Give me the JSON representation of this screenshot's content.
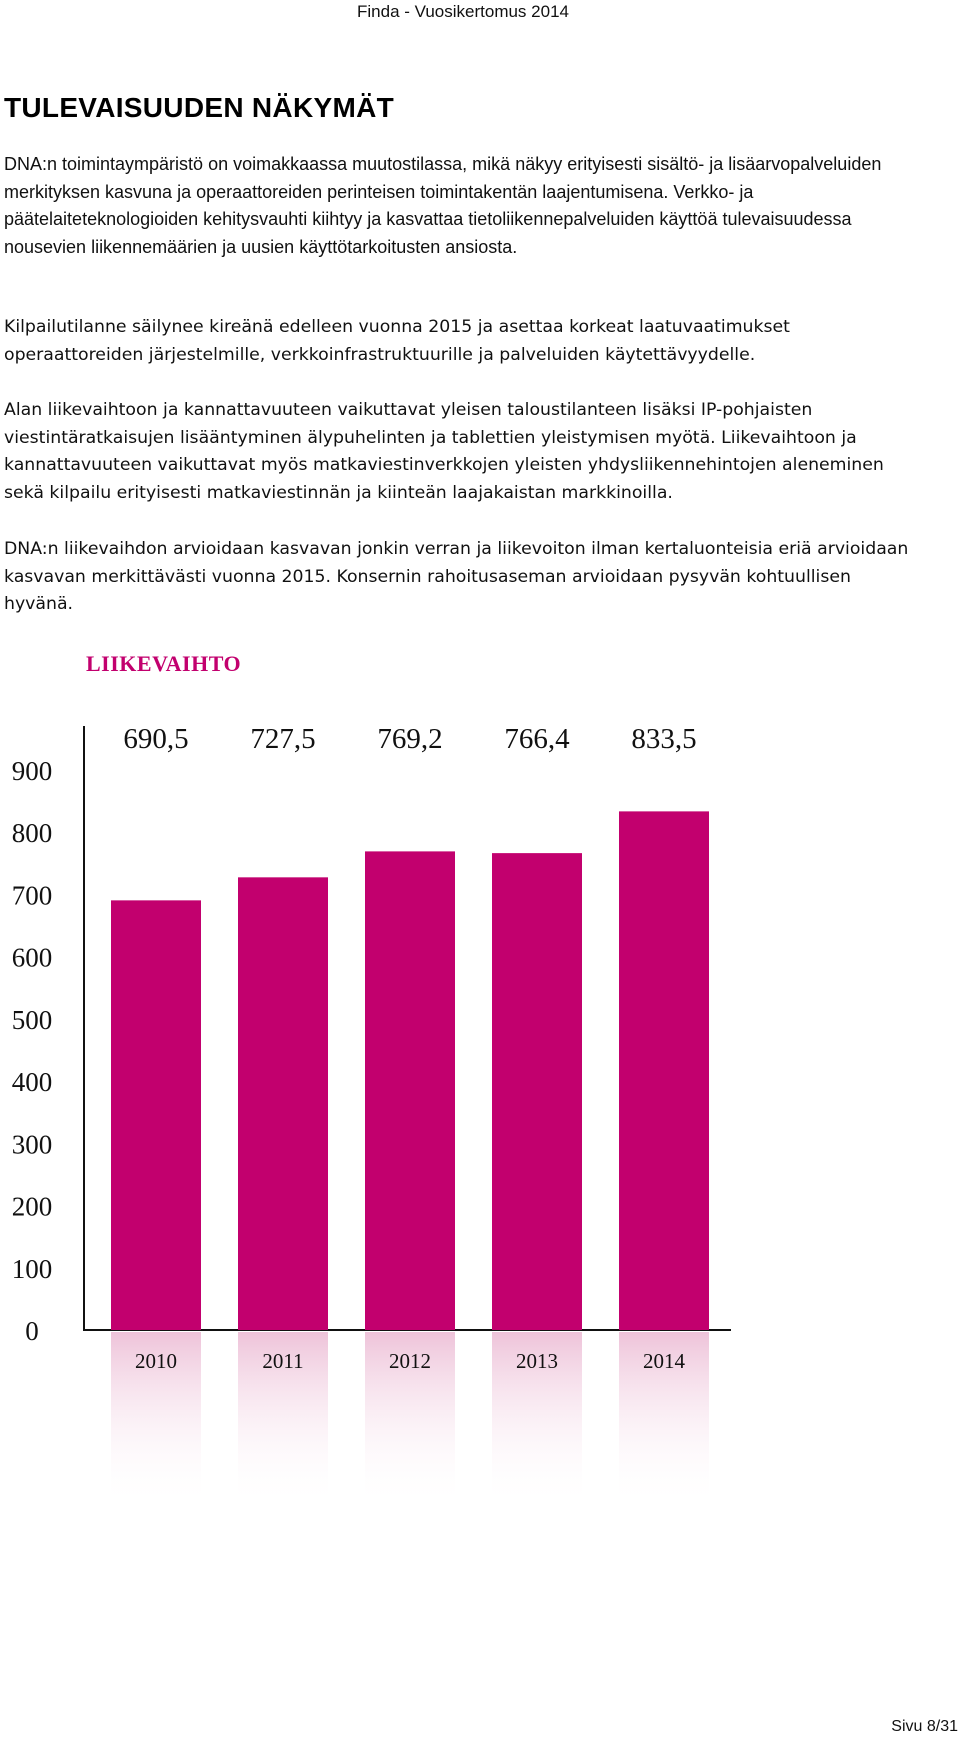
{
  "header": {
    "running_title": "Finda - Vuosikertomus 2014"
  },
  "section": {
    "heading": "TULEVAISUUDEN NÄKYMÄT",
    "paragraphs": [
      "DNA:n toimintaympäristö on voimakkaassa muutostilassa, mikä näkyy erityisesti sisältö- ja lisäarvopalveluiden merkityksen kasvuna ja operaattoreiden perinteisen toimintakentän laajentumisena. Verkko- ja päätelaiteteknologioiden kehitysvauhti kiihtyy ja kasvattaa tietoliikennepalveluiden käyttöä tulevaisuudessa nousevien liikennemäärien ja uusien käyttötarkoitusten ansiosta.",
      "Kilpailutilanne säilynee kireänä edelleen vuonna 2015 ja asettaa korkeat laatuvaatimukset operaattoreiden järjestelmille, verkkoinfrastruktuurille ja palveluiden käytettävyydelle.",
      "Alan liikevaihtoon ja kannattavuuteen vaikuttavat yleisen taloustilanteen lisäksi IP-pohjaisten viestintäratkaisujen lisääntyminen älypuhelinten ja tablettien yleistymisen myötä. Liikevaihtoon ja kannattavuuteen vaikuttavat myös matkaviestinverkkojen yleisten yhdysliikennehintojen aleneminen sekä kilpailu erityisesti matkaviestinnän ja kiinteän laajakaistan markkinoilla.",
      "DNA:n liikevaihdon arvioidaan kasvavan jonkin verran ja liikevoiton ilman kertaluonteisia eriä arvioidaan kasvavan merkittävästi vuonna 2015. Konsernin rahoitusaseman arvioidaan pysyvän kohtuullisen hyvänä."
    ]
  },
  "chart_data": {
    "type": "bar",
    "title": "LIIKEVAIHTO",
    "categories": [
      "2010",
      "2011",
      "2012",
      "2013",
      "2014"
    ],
    "values": [
      690.5,
      727.5,
      769.2,
      766.4,
      833.5
    ],
    "value_labels": [
      "690,5",
      "727,5",
      "769,2",
      "766,4",
      "833,5"
    ],
    "y_ticks": [
      "0",
      "100",
      "200",
      "300",
      "400",
      "500",
      "600",
      "700",
      "800",
      "900"
    ],
    "ylim": [
      0,
      900
    ],
    "xlabel": "",
    "ylabel": "",
    "grid": false,
    "colors": {
      "bar": "#c2006e",
      "title": "#c2006e",
      "reflection": "#f3d3e4",
      "axis": "#111111"
    }
  },
  "footer": {
    "page": "Sivu 8/31"
  }
}
